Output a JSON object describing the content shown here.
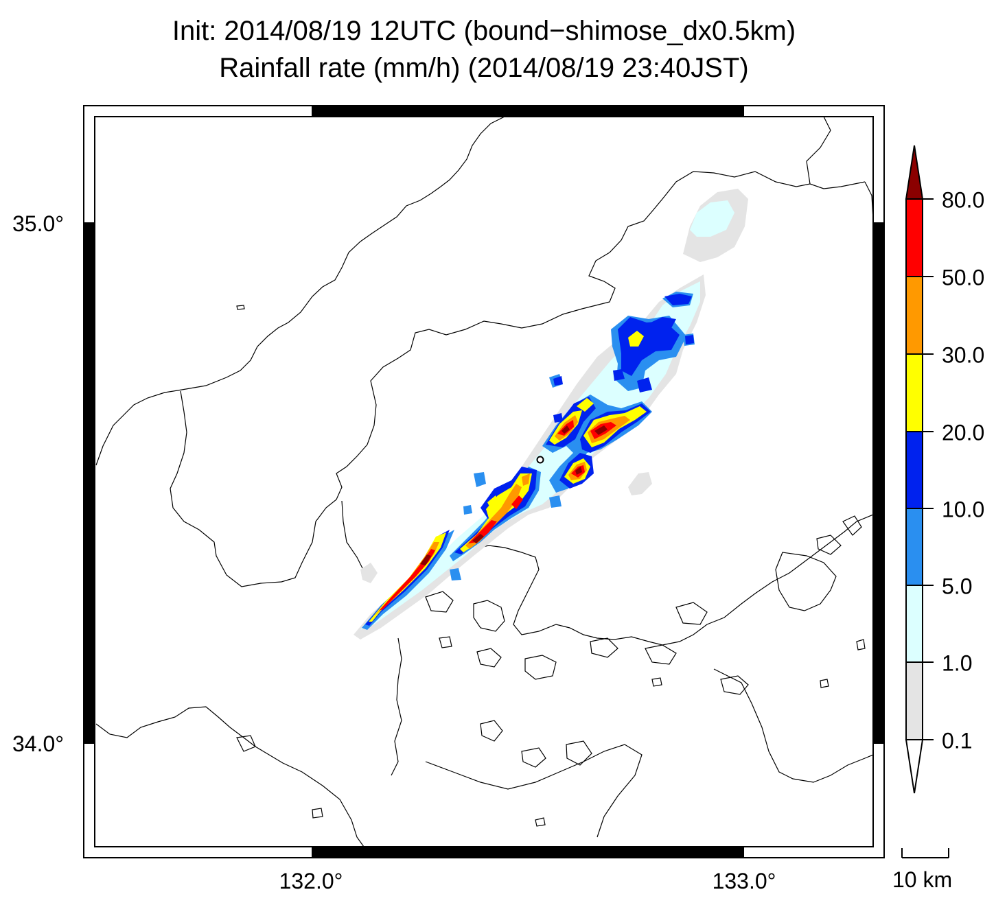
{
  "title_line1": "Init: 2014/08/19 12UTC (bound−shimose_dx0.5km)",
  "title_line2": "Rainfall rate (mm/h) (2014/08/19 23:40JST)",
  "latitude_labels": [
    "35.0°",
    "34.0°"
  ],
  "longitude_labels": [
    "132.0°",
    "133.0°"
  ],
  "colorbar": {
    "unit": "mm/h",
    "levels": [
      "80.0",
      "50.0",
      "30.0",
      "20.0",
      "10.0",
      "5.0",
      "1.0",
      "0.1"
    ],
    "colors": {
      "above_80": "#8b0000",
      "50_80": "#ff0000",
      "30_50": "#ff9900",
      "20_30": "#ffff00",
      "10_20": "#0022ee",
      "5_10": "#2a8ff0",
      "1_5": "#dcffff",
      "0.1_1": "#e4e4e4",
      "below_0.1": "#ffffff"
    }
  },
  "scale_bar": {
    "label": "10 km"
  },
  "map_colors": {
    "coastline": "#000000",
    "boundary": "#000000",
    "frame": "#000000"
  }
}
